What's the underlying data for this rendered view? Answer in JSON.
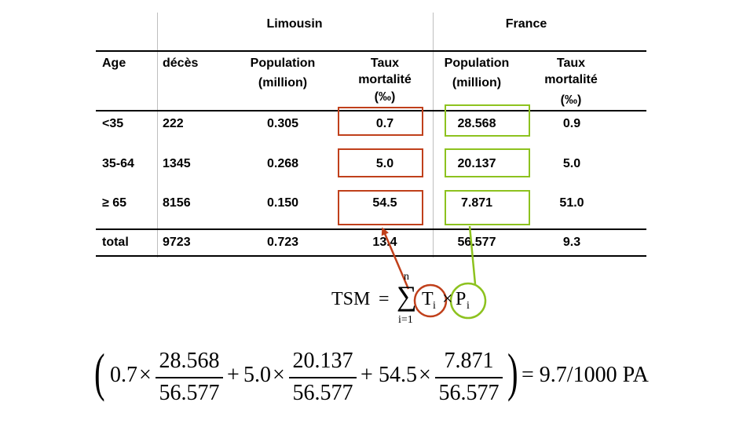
{
  "table": {
    "groups": {
      "left": "Limousin",
      "right": "France"
    },
    "headers": {
      "age": "Age",
      "deces": "décès",
      "pop_limousin": [
        "Population",
        "(million)"
      ],
      "taux_limousin": [
        "Taux",
        "mortalité",
        "(‰)"
      ],
      "pop_france": [
        "Population",
        "(million)"
      ],
      "taux_france": [
        "Taux",
        "mortalité",
        "(‰)"
      ]
    },
    "rows": [
      {
        "age": "<35",
        "deces": "222",
        "pop_limousin": "0.305",
        "taux_limousin": "0.7",
        "pop_france": "28.568",
        "taux_france": "0.9"
      },
      {
        "age": "35-64",
        "deces": "1345",
        "pop_limousin": "0.268",
        "taux_limousin": "5.0",
        "pop_france": "20.137",
        "taux_france": "5.0"
      },
      {
        "age": "≥ 65",
        "deces": "8156",
        "pop_limousin": "0.150",
        "taux_limousin": "54.5",
        "pop_france": "7.871",
        "taux_france": "51.0"
      },
      {
        "age": "total",
        "deces": "9723",
        "pop_limousin": "0.723",
        "taux_limousin": "13.4",
        "pop_france": "56.577",
        "taux_france": "9.3"
      }
    ]
  },
  "formula": {
    "lhs": "TSM",
    "equals": "=",
    "sum_symbol": "∑",
    "upper": "n",
    "lower": "i=1",
    "t": "T",
    "t_sub": "i",
    "times": "×",
    "p": "P",
    "p_sub": "i"
  },
  "calculation": {
    "terms": [
      {
        "coef": "0.7",
        "num": "28.568",
        "den": "56.577"
      },
      {
        "coef": "5.0",
        "num": "20.137",
        "den": "56.577"
      },
      {
        "coef": "54.5",
        "num": "7.871",
        "den": "56.577"
      }
    ],
    "times": "×",
    "plus": "+",
    "result": "= 9.7/1000 PA"
  },
  "colors": {
    "limousin_highlight": "#c0401b",
    "france_highlight": "#8dc21f"
  }
}
